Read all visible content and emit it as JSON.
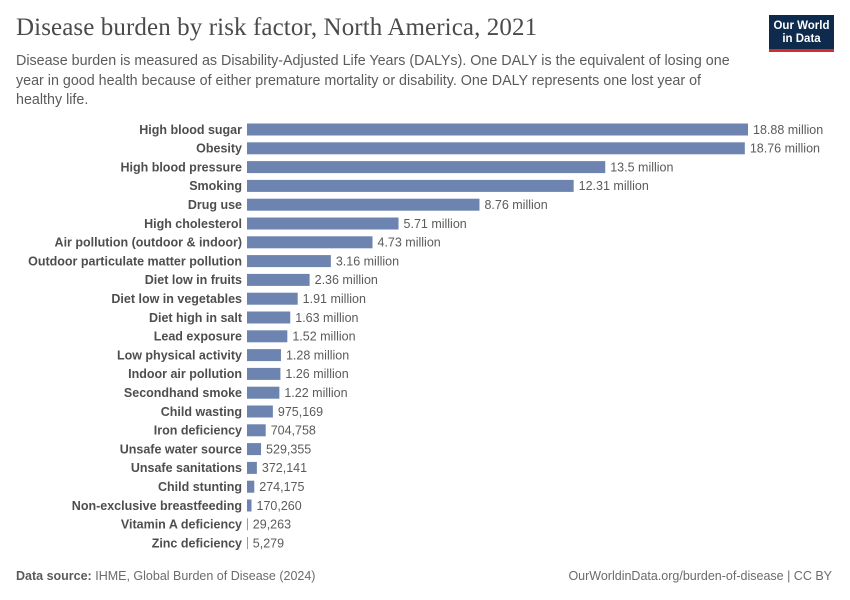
{
  "header": {
    "title": "Disease burden by risk factor, North America, 2021",
    "subtitle": "Disease burden is measured as Disability-Adjusted Life Years (DALYs). One DALY is the equivalent of losing one year in good health because of either premature mortality or disability. One DALY represents one lost year of healthy life.",
    "logo_line1": "Our World",
    "logo_line2": "in Data"
  },
  "footer": {
    "source_label": "Data source:",
    "source_text": "IHME, Global Burden of Disease (2024)",
    "url_text": "OurWorldinData.org/burden-of-disease | CC BY"
  },
  "colors": {
    "bar": "#6d84b1",
    "logo_bg": "#0e2a4d",
    "logo_accent": "#d42b30"
  },
  "chart_data": {
    "type": "bar",
    "orientation": "horizontal",
    "title": "Disease burden by risk factor, North America, 2021",
    "categories": [
      "High blood sugar",
      "Obesity",
      "High blood pressure",
      "Smoking",
      "Drug use",
      "High cholesterol",
      "Air pollution (outdoor & indoor)",
      "Outdoor particulate matter pollution",
      "Diet low in fruits",
      "Diet low in vegetables",
      "Diet high in salt",
      "Lead exposure",
      "Low physical activity",
      "Indoor air pollution",
      "Secondhand smoke",
      "Child wasting",
      "Iron deficiency",
      "Unsafe water source",
      "Unsafe sanitations",
      "Child stunting",
      "Non-exclusive breastfeeding",
      "Vitamin A deficiency",
      "Zinc deficiency"
    ],
    "values": [
      18880000,
      18760000,
      13500000,
      12310000,
      8760000,
      5710000,
      4730000,
      3160000,
      2360000,
      1910000,
      1630000,
      1520000,
      1280000,
      1260000,
      1220000,
      975169,
      704758,
      529355,
      372141,
      274175,
      170260,
      29263,
      5279
    ],
    "value_labels": [
      "18.88 million",
      "18.76 million",
      "13.5 million",
      "12.31 million",
      "8.76 million",
      "5.71 million",
      "4.73 million",
      "3.16 million",
      "2.36 million",
      "1.91 million",
      "1.63 million",
      "1.52 million",
      "1.28 million",
      "1.26 million",
      "1.22 million",
      "975,169",
      "704,758",
      "529,355",
      "372,141",
      "274,175",
      "170,260",
      "29,263",
      "5,279"
    ],
    "xlim": [
      0,
      18880000
    ],
    "grid": false,
    "legend": "none"
  }
}
